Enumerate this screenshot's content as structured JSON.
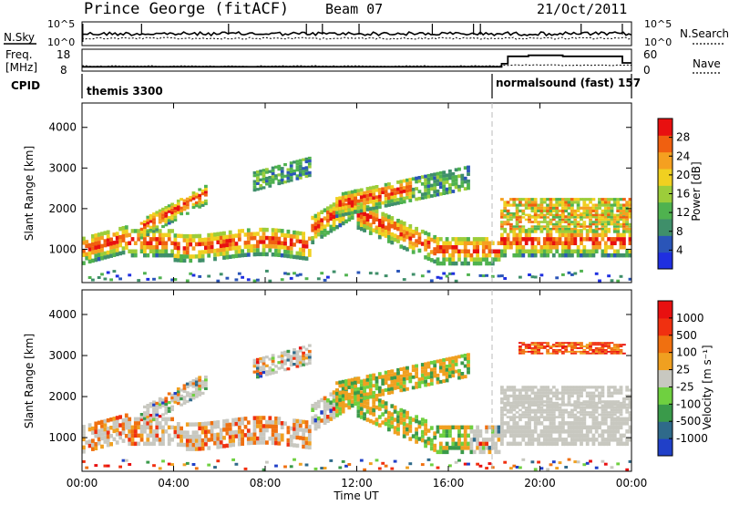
{
  "header": {
    "site": "Prince George (fitACF)",
    "beam": "Beam 07",
    "date": "21/Oct/2011"
  },
  "top_panel": {
    "left_label": "N.Sky",
    "right_label": "N.Search",
    "left_ticks": [
      "10^5",
      "10^0"
    ],
    "right_ticks": [
      "10^5",
      "10^0"
    ]
  },
  "freq_panel": {
    "left_label_line1": "Freq.",
    "left_label_line2": "[MHz]",
    "right_label": "Nave",
    "left_ticks": [
      "18",
      "8"
    ],
    "right_ticks": [
      "60",
      "0"
    ]
  },
  "cpid": {
    "label": "CPID",
    "segments": [
      {
        "name": "themis 3300",
        "start_h": 0,
        "end_h": 18.33
      },
      {
        "name": "normalsound (fast) 157",
        "start_h": 18.33,
        "end_h": 24
      }
    ]
  },
  "chart_data": [
    {
      "type": "heatmap",
      "name": "power",
      "ylabel": "Slant Range [km]",
      "xlabel": "",
      "xlim": [
        0,
        24
      ],
      "ylim": [
        180,
        4600
      ],
      "yticks": [
        "1000",
        "2000",
        "3000",
        "4000"
      ],
      "colorbar_label": "Power [dB]",
      "colorbar_ticks": [
        "4",
        "8",
        "12",
        "16",
        "20",
        "24",
        "28"
      ],
      "colorbar_colors": [
        "#1f2fe0",
        "#2a55b8",
        "#3f8f6a",
        "#4fb24f",
        "#9ccd3a",
        "#f0d020",
        "#f5a020",
        "#f06010",
        "#e81010"
      ]
    },
    {
      "type": "heatmap",
      "name": "velocity",
      "ylabel": "Slant Range [km]",
      "xlabel": "Time UT",
      "xlim": [
        0,
        24
      ],
      "ylim": [
        180,
        4600
      ],
      "yticks": [
        "1000",
        "2000",
        "3000",
        "4000"
      ],
      "xticks": [
        "00:00",
        "04:00",
        "08:00",
        "12:00",
        "16:00",
        "20:00",
        "00:00"
      ],
      "colorbar_label": "Velocity [m s⁻¹]",
      "colorbar_ticks": [
        "1000",
        "500",
        "100",
        "25",
        "-25",
        "-100",
        "-500",
        "-1000"
      ],
      "colorbar_colors": [
        "#2040c8",
        "#2f6a8a",
        "#3a9a4a",
        "#6fd040",
        "#c8c8c0",
        "#f0a020",
        "#f07010",
        "#f03010",
        "#e81010"
      ]
    }
  ]
}
